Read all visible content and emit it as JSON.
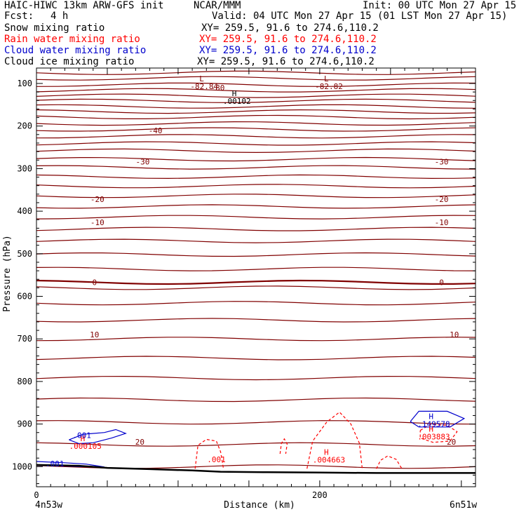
{
  "header": {
    "left_line1": "HAIC-HIWC 13km ARW-GFS init",
    "center_line1": "NCAR/MMM",
    "right_line1": "Init: 00 UTC Mon 27 Apr 15",
    "fcst_label": "Fcst:",
    "fcst_value": "4 h",
    "valid": "Valid: 04 UTC Mon 27 Apr 15 (01 LST Mon 27 Apr 15)",
    "fields": [
      {
        "name": "Snow mixing ratio",
        "xy": "XY= 259.5, 91.6 to 274.6,110.2",
        "color": "#000000"
      },
      {
        "name": "Rain water mixing ratio",
        "xy": "XY= 259.5, 91.6 to 274.6,110.2",
        "color": "#ff0000"
      },
      {
        "name": "Cloud water mixing ratio",
        "xy": "XY= 259.5, 91.6 to 274.6,110.2",
        "color": "#0000cc"
      },
      {
        "name": "Cloud ice mixing ratio",
        "xy": "XY= 259.5, 91.6 to 274.6,110.2",
        "color": "#000000"
      }
    ]
  },
  "footer": {
    "left_location": "4n53w",
    "right_location": "6n51w"
  },
  "colors": {
    "temperature": "#800000",
    "rain": "#ff0000",
    "cloud_water": "#0000cc",
    "ice": "#000000",
    "terrain": "#000000"
  },
  "chart_data": {
    "type": "line",
    "xlabel": "Distance (km)",
    "ylabel": "Pressure (hPa)",
    "xlim": [
      0,
      310
    ],
    "ylim": [
      1040,
      70
    ],
    "xticks": [
      0,
      200
    ],
    "yticks": [
      100,
      200,
      300,
      400,
      500,
      600,
      700,
      800,
      900,
      1000
    ],
    "isotherm_pressures": [
      75,
      88,
      103,
      116,
      129,
      141,
      154,
      166,
      179,
      194,
      208,
      224,
      241,
      258,
      278,
      297,
      319,
      341,
      364,
      389,
      414,
      442,
      470,
      502,
      536,
      567,
      580,
      616,
      656,
      700,
      745,
      792,
      843,
      896,
      948,
      1000
    ],
    "isotherm_labels": [
      {
        "x": 128,
        "p": 110,
        "text": "-80"
      },
      {
        "x": 84,
        "p": 210,
        "text": "-40"
      },
      {
        "x": 75,
        "p": 284,
        "text": "-30"
      },
      {
        "x": 286,
        "p": 284,
        "text": "-30"
      },
      {
        "x": 43,
        "p": 372,
        "text": "-20"
      },
      {
        "x": 286,
        "p": 372,
        "text": "-20"
      },
      {
        "x": 43,
        "p": 426,
        "text": "-10"
      },
      {
        "x": 286,
        "p": 426,
        "text": "-10"
      },
      {
        "x": 41,
        "p": 567,
        "text": "0"
      },
      {
        "x": 286,
        "p": 567,
        "text": "0"
      },
      {
        "x": 41,
        "p": 690,
        "text": "10"
      },
      {
        "x": 295,
        "p": 690,
        "text": "10"
      },
      {
        "x": 73,
        "p": 942,
        "text": "20"
      },
      {
        "x": 293,
        "p": 942,
        "text": "20"
      }
    ],
    "extrema": [
      {
        "x": 117,
        "p": 95,
        "letter": "L",
        "value": "-82.84",
        "color": "#800000"
      },
      {
        "x": 205,
        "p": 95,
        "letter": "L",
        "value": "-82.82",
        "color": "#800000"
      },
      {
        "x": 140,
        "p": 130,
        "letter": "H",
        "value": ".00102",
        "color": "#000000"
      },
      {
        "x": 33,
        "p": 940,
        "letter": "H",
        "value": ".000105",
        "color": "#ff0000"
      },
      {
        "x": 205,
        "p": 972,
        "letter": "H",
        "value": ".004663",
        "color": "#ff0000"
      },
      {
        "x": 279,
        "p": 888,
        "letter": "H",
        "value": ".149578",
        "color": "#0000cc"
      },
      {
        "x": 279,
        "p": 918,
        "letter": "H",
        "value": ".003883",
        "color": "#ff0000"
      }
    ],
    "contour_labels": [
      {
        "x": 32,
        "p": 926,
        "text": ".001",
        "color": "#0000cc"
      },
      {
        "x": 13,
        "p": 993,
        "text": ".001",
        "color": "#0000cc"
      },
      {
        "x": 127,
        "p": 983,
        "text": ".001",
        "color": "#ff0000"
      }
    ],
    "terrain": [
      [
        0,
        996
      ],
      [
        30,
        998
      ],
      [
        50,
        1003
      ],
      [
        80,
        1006
      ],
      [
        110,
        1009
      ],
      [
        130,
        1012
      ],
      [
        160,
        1013
      ],
      [
        200,
        1014
      ],
      [
        240,
        1015
      ],
      [
        280,
        1015
      ],
      [
        310,
        1015
      ]
    ],
    "cloud_water_contours": [
      [
        [
          23,
          937
        ],
        [
          33,
          924
        ],
        [
          48,
          920
        ],
        [
          56,
          913
        ],
        [
          63,
          922
        ],
        [
          53,
          933
        ],
        [
          40,
          944
        ],
        [
          30,
          946
        ],
        [
          23,
          937
        ]
      ],
      [
        [
          0,
          988
        ],
        [
          20,
          991
        ],
        [
          35,
          994
        ],
        [
          48,
          1001
        ],
        [
          30,
          1000
        ],
        [
          15,
          998
        ],
        [
          0,
          997
        ]
      ],
      [
        [
          264,
          894
        ],
        [
          270,
          870
        ],
        [
          290,
          870
        ],
        [
          302,
          887
        ],
        [
          292,
          907
        ],
        [
          270,
          907
        ],
        [
          264,
          894
        ]
      ]
    ],
    "rain_contours": [
      [
        [
          112,
          1005
        ],
        [
          114,
          950
        ],
        [
          120,
          936
        ],
        [
          127,
          940
        ],
        [
          130,
          965
        ],
        [
          132,
          1005
        ]
      ],
      [
        [
          172,
          970
        ],
        [
          173,
          945
        ],
        [
          175,
          935
        ],
        [
          177,
          947
        ],
        [
          176,
          970
        ]
      ],
      [
        [
          191,
          1005
        ],
        [
          195,
          940
        ],
        [
          205,
          895
        ],
        [
          214,
          872
        ],
        [
          222,
          900
        ],
        [
          228,
          945
        ],
        [
          230,
          1005
        ]
      ],
      [
        [
          240,
          1005
        ],
        [
          243,
          985
        ],
        [
          248,
          975
        ],
        [
          254,
          983
        ],
        [
          258,
          1005
        ]
      ],
      [
        [
          271,
          915
        ],
        [
          278,
          901
        ],
        [
          290,
          903
        ],
        [
          297,
          918
        ],
        [
          292,
          940
        ],
        [
          280,
          943
        ],
        [
          271,
          933
        ],
        [
          271,
          915
        ]
      ]
    ]
  }
}
